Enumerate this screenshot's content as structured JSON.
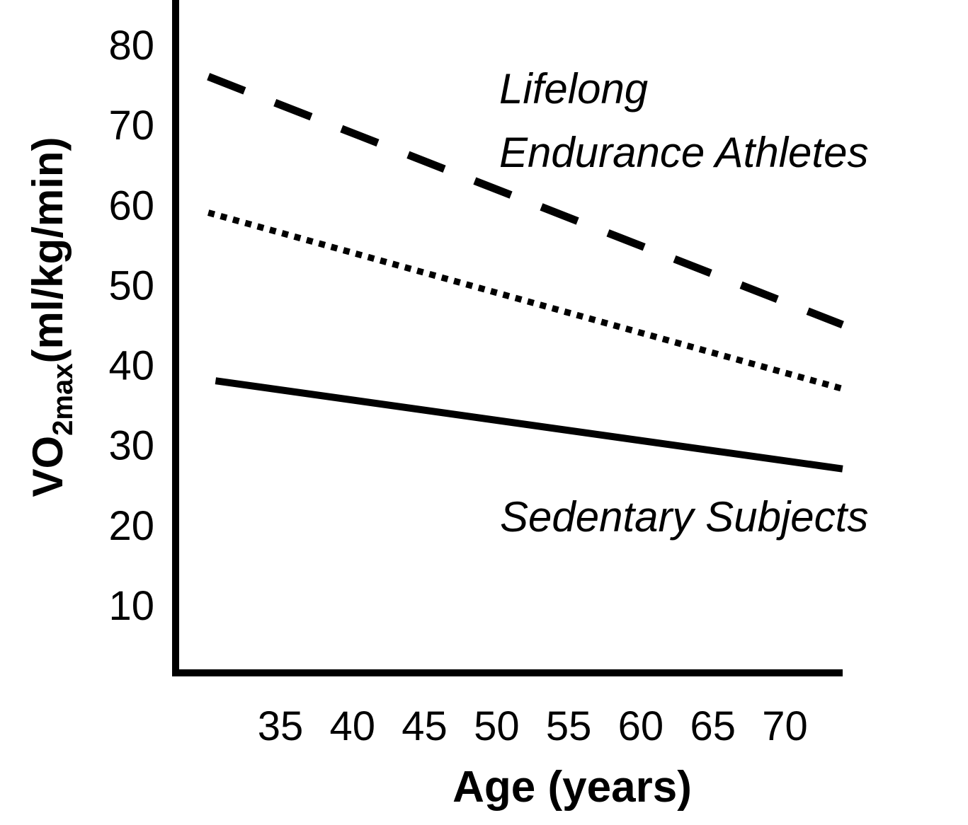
{
  "chart_data": {
    "type": "line",
    "xlabel": "Age (years)",
    "ylabel": {
      "prefix": "VO",
      "subscript": "2max",
      "suffix": "(ml/kg/min)"
    },
    "x_ticks": [
      35,
      40,
      45,
      50,
      55,
      60,
      65,
      70
    ],
    "y_ticks": [
      10,
      20,
      30,
      40,
      50,
      60,
      70,
      80
    ],
    "grid": false,
    "series": [
      {
        "id": "athletes",
        "style": "dashed",
        "points": [
          [
            30,
            76
          ],
          [
            74,
            45
          ]
        ],
        "label_lines": [
          "Lifelong",
          "Endurance Athletes"
        ]
      },
      {
        "id": "middle",
        "style": "dotted",
        "points": [
          [
            30,
            59
          ],
          [
            74,
            37
          ]
        ]
      },
      {
        "id": "sedentary",
        "style": "solid",
        "points": [
          [
            30.5,
            38
          ],
          [
            74,
            27
          ]
        ],
        "label_lines": [
          "Sedentary Subjects"
        ]
      }
    ]
  }
}
